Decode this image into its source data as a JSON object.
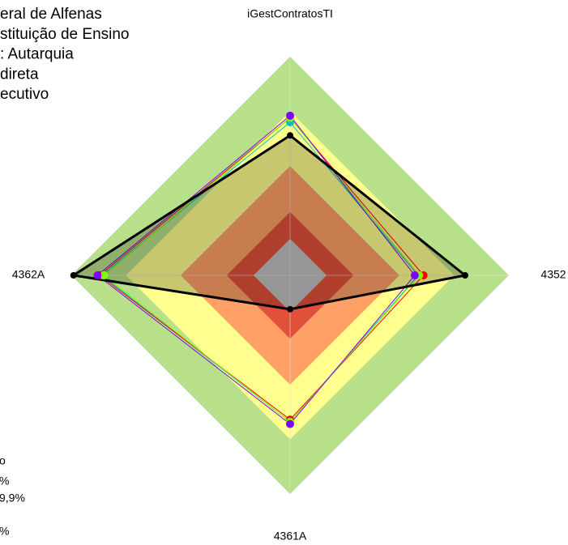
{
  "chart_data": {
    "type": "radar",
    "title": "iGestContratosTI",
    "categories": [
      "iGestContratosTI",
      "4352",
      "4361A",
      "4362A"
    ],
    "show_top_category_as_title": true,
    "rlim": [
      0,
      1
    ],
    "bands": [
      {
        "value": 1.0,
        "color": "#b8e08a"
      },
      {
        "value": 0.75,
        "color": "#ffff90"
      },
      {
        "value": 0.5,
        "color": "#ffa066"
      },
      {
        "value": 0.29,
        "color": "#e0503a"
      },
      {
        "value": 0.167,
        "color": "#c0c0c0"
      }
    ],
    "series": [
      {
        "color": "#00c0c0",
        "values": [
          0.7,
          0.585,
          0.67,
          0.86
        ]
      },
      {
        "color": "#ff0000",
        "values": [
          0.72,
          0.61,
          0.66,
          0.87
        ]
      },
      {
        "color": "#80ff00",
        "values": [
          0.72,
          0.59,
          0.67,
          0.85
        ]
      },
      {
        "color": "#8000ff",
        "values": [
          0.73,
          0.57,
          0.68,
          0.88
        ]
      },
      {
        "color": "#000000",
        "values": [
          0.64,
          0.8,
          0.155,
          0.99
        ],
        "fill": true
      }
    ],
    "notes_top": [
      "eral de Alfenas",
      "stituição de Ensino",
      ": Autarquia",
      "direta",
      "ecutivo"
    ],
    "notes_bottom": [
      "o",
      "%",
      "9,9%",
      "%"
    ]
  }
}
